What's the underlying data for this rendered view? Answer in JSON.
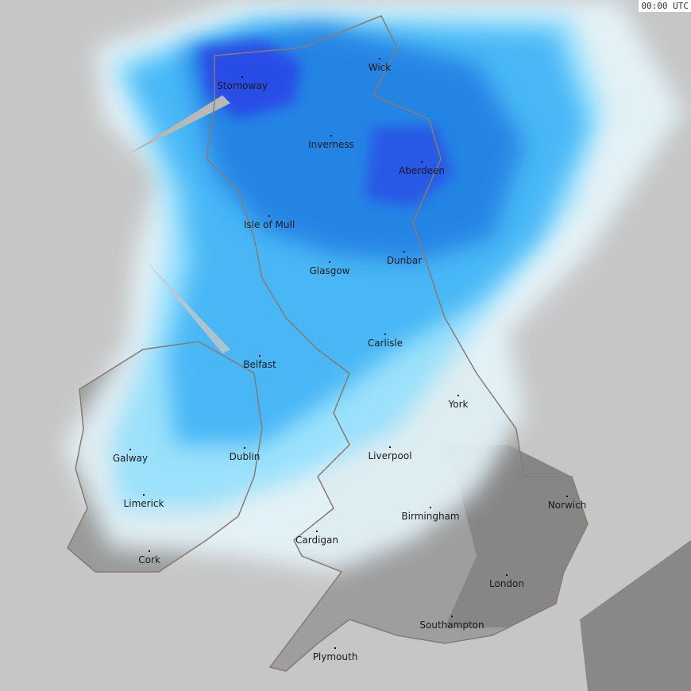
{
  "timestamp": "00:00 UTC",
  "colors": {
    "background": "#c6c6c6",
    "land": "#9a9a9a",
    "land_dark": "#858585",
    "coastline": "#8a7a70",
    "rain_light": "#e6f6fc",
    "rain_cyan": "#7fdcff",
    "rain_mid": "#3ab0f5",
    "rain_heavy": "#1f78e0",
    "rain_very_heavy": "#2a3ae8"
  },
  "cities": [
    {
      "name": "Stornoway"
    },
    {
      "name": "Wick"
    },
    {
      "name": "Inverness"
    },
    {
      "name": "Aberdeen"
    },
    {
      "name": "Isle of Mull"
    },
    {
      "name": "Dunbar"
    },
    {
      "name": "Glasgow"
    },
    {
      "name": "Carlisle"
    },
    {
      "name": "Belfast"
    },
    {
      "name": "York"
    },
    {
      "name": "Galway"
    },
    {
      "name": "Dublin"
    },
    {
      "name": "Liverpool"
    },
    {
      "name": "Limerick"
    },
    {
      "name": "Norwich"
    },
    {
      "name": "Birmingham"
    },
    {
      "name": "Cardigan"
    },
    {
      "name": "Cork"
    },
    {
      "name": "London"
    },
    {
      "name": "Southampton"
    },
    {
      "name": "Plymouth"
    }
  ]
}
